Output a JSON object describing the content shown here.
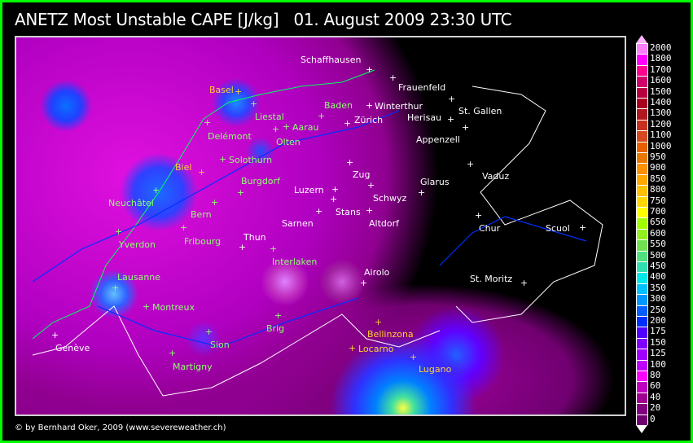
{
  "title": "ANETZ Most Unstable CAPE [J/kg]   01. August 2009 23:30 UTC",
  "copyright": "© by Bernhard Oker, 2009 (www.severeweather.ch)",
  "cities": [
    "Schaffhausen",
    "Frauenfeld",
    "Basel",
    "Liestal",
    "Baden",
    "Winterthur",
    "St. Gallen",
    "Zürich",
    "Herisau",
    "Aarau",
    "Delémont",
    "Olten",
    "Appenzell",
    "Solothurn",
    "Biel",
    "Vaduz",
    "Zug",
    "Burgdorf",
    "Glarus",
    "Luzern",
    "Schwyz",
    "Neuchâtel",
    "Stans",
    "Bern",
    "Sarnen",
    "Altdorf",
    "Chur",
    "Scuol",
    "Fribourg",
    "Thun",
    "Yverdon",
    "Interlaken",
    "Airolo",
    "Lausanne",
    "St. Moritz",
    "Montreux",
    "Brig",
    "Bellinzona",
    "Sion",
    "Genève",
    "Locarno",
    "Martigny",
    "Lugano"
  ],
  "legend": {
    "labels": [
      "2000",
      "1800",
      "1700",
      "1600",
      "1500",
      "1400",
      "1300",
      "1200",
      "1100",
      "1000",
      "950",
      "900",
      "850",
      "800",
      "750",
      "700",
      "650",
      "600",
      "550",
      "500",
      "450",
      "400",
      "350",
      "300",
      "250",
      "200",
      "175",
      "150",
      "125",
      "100",
      "80",
      "60",
      "40",
      "20",
      "0"
    ],
    "colors": [
      "#ff80ff",
      "#ff00ff",
      "#ff0090",
      "#d0006a",
      "#b80040",
      "#a80020",
      "#b01820",
      "#c83020",
      "#d84820",
      "#e86000",
      "#e87800",
      "#ff9000",
      "#ffa800",
      "#ffc000",
      "#ffd800",
      "#ffff00",
      "#a0ff00",
      "#90f020",
      "#70e050",
      "#50e080",
      "#30e0b0",
      "#00e8e8",
      "#00c0ff",
      "#0098ff",
      "#0060ff",
      "#0030ff",
      "#5000ff",
      "#8000ff",
      "#a000ff",
      "#c000ff",
      "#ff00ff",
      "#c000c0",
      "#a00090",
      "#800080",
      "#700070"
    ]
  },
  "frame_color": "#00ff00"
}
